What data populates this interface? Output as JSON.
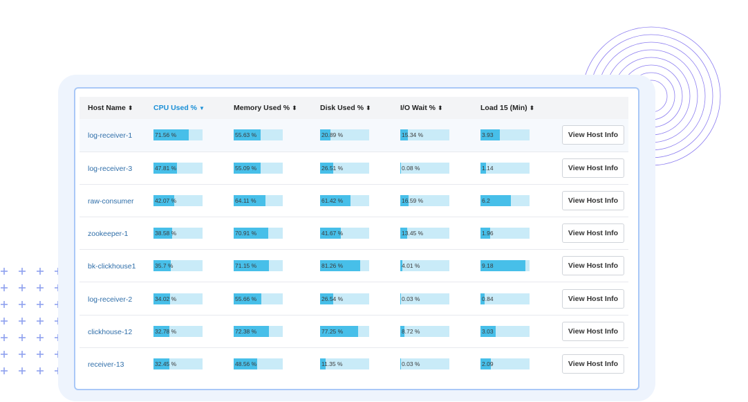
{
  "table": {
    "columns": [
      {
        "label": "Host Name",
        "sort_icon": "sort-both-icon"
      },
      {
        "label": "CPU Used %",
        "sort_icon": "sort-desc-icon"
      },
      {
        "label": "Memory Used %",
        "sort_icon": "sort-both-icon"
      },
      {
        "label": "Disk Used %",
        "sort_icon": "sort-both-icon"
      },
      {
        "label": "I/O Wait %",
        "sort_icon": "sort-both-icon"
      },
      {
        "label": "Load 15 (Min)",
        "sort_icon": "sort-both-icon"
      }
    ],
    "sorted_column": "CPU Used %",
    "action_label": "View Host Info",
    "load_scale_max": 10,
    "rows": [
      {
        "host": "log-receiver-1",
        "cpu": "71.56 %",
        "memory": "55.63 %",
        "disk": "20.89 %",
        "io": "15.34 %",
        "load": "3.93",
        "cpu_v": 71.56,
        "memory_v": 55.63,
        "disk_v": 20.89,
        "io_v": 15.34,
        "load_v": 3.93
      },
      {
        "host": "log-receiver-3",
        "cpu": "47.81 %",
        "memory": "55.09 %",
        "disk": "26.51 %",
        "io": "0.08 %",
        "load": "1.14",
        "cpu_v": 47.81,
        "memory_v": 55.09,
        "disk_v": 26.51,
        "io_v": 0.08,
        "load_v": 1.14
      },
      {
        "host": "raw-consumer",
        "cpu": "42.07 %",
        "memory": "64.11 %",
        "disk": "61.42 %",
        "io": "16.59 %",
        "load": "6.2",
        "cpu_v": 42.07,
        "memory_v": 64.11,
        "disk_v": 61.42,
        "io_v": 16.59,
        "load_v": 6.2
      },
      {
        "host": "zookeeper-1",
        "cpu": "38.58 %",
        "memory": "70.91 %",
        "disk": "41.67 %",
        "io": "13.45 %",
        "load": "1.96",
        "cpu_v": 38.58,
        "memory_v": 70.91,
        "disk_v": 41.67,
        "io_v": 13.45,
        "load_v": 1.96
      },
      {
        "host": "bk-clickhouse1",
        "cpu": "35.7 %",
        "memory": "71.15 %",
        "disk": "81.26 %",
        "io": "4.01 %",
        "load": "9.18",
        "cpu_v": 35.7,
        "memory_v": 71.15,
        "disk_v": 81.26,
        "io_v": 4.01,
        "load_v": 9.18
      },
      {
        "host": "log-receiver-2",
        "cpu": "34.02 %",
        "memory": "55.66 %",
        "disk": "26.54 %",
        "io": "0.03 %",
        "load": "0.84",
        "cpu_v": 34.02,
        "memory_v": 55.66,
        "disk_v": 26.54,
        "io_v": 0.03,
        "load_v": 0.84
      },
      {
        "host": "clickhouse-12",
        "cpu": "32.78 %",
        "memory": "72.38 %",
        "disk": "77.25 %",
        "io": "8.72 %",
        "load": "3.03",
        "cpu_v": 32.78,
        "memory_v": 72.38,
        "disk_v": 77.25,
        "io_v": 8.72,
        "load_v": 3.03
      },
      {
        "host": "receiver-13",
        "cpu": "32.45 %",
        "memory": "48.56 %",
        "disk": "11.35 %",
        "io": "0.03 %",
        "load": "2.09",
        "cpu_v": 32.45,
        "memory_v": 48.56,
        "disk_v": 11.35,
        "io_v": 0.03,
        "load_v": 2.09
      }
    ]
  },
  "colors": {
    "bar_fill": "#47bfe9",
    "bar_track": "#c9ebf8",
    "sorted_header": "#1a8fd6",
    "host_link": "#2f6ea9",
    "panel_border": "#a9c8f7"
  }
}
